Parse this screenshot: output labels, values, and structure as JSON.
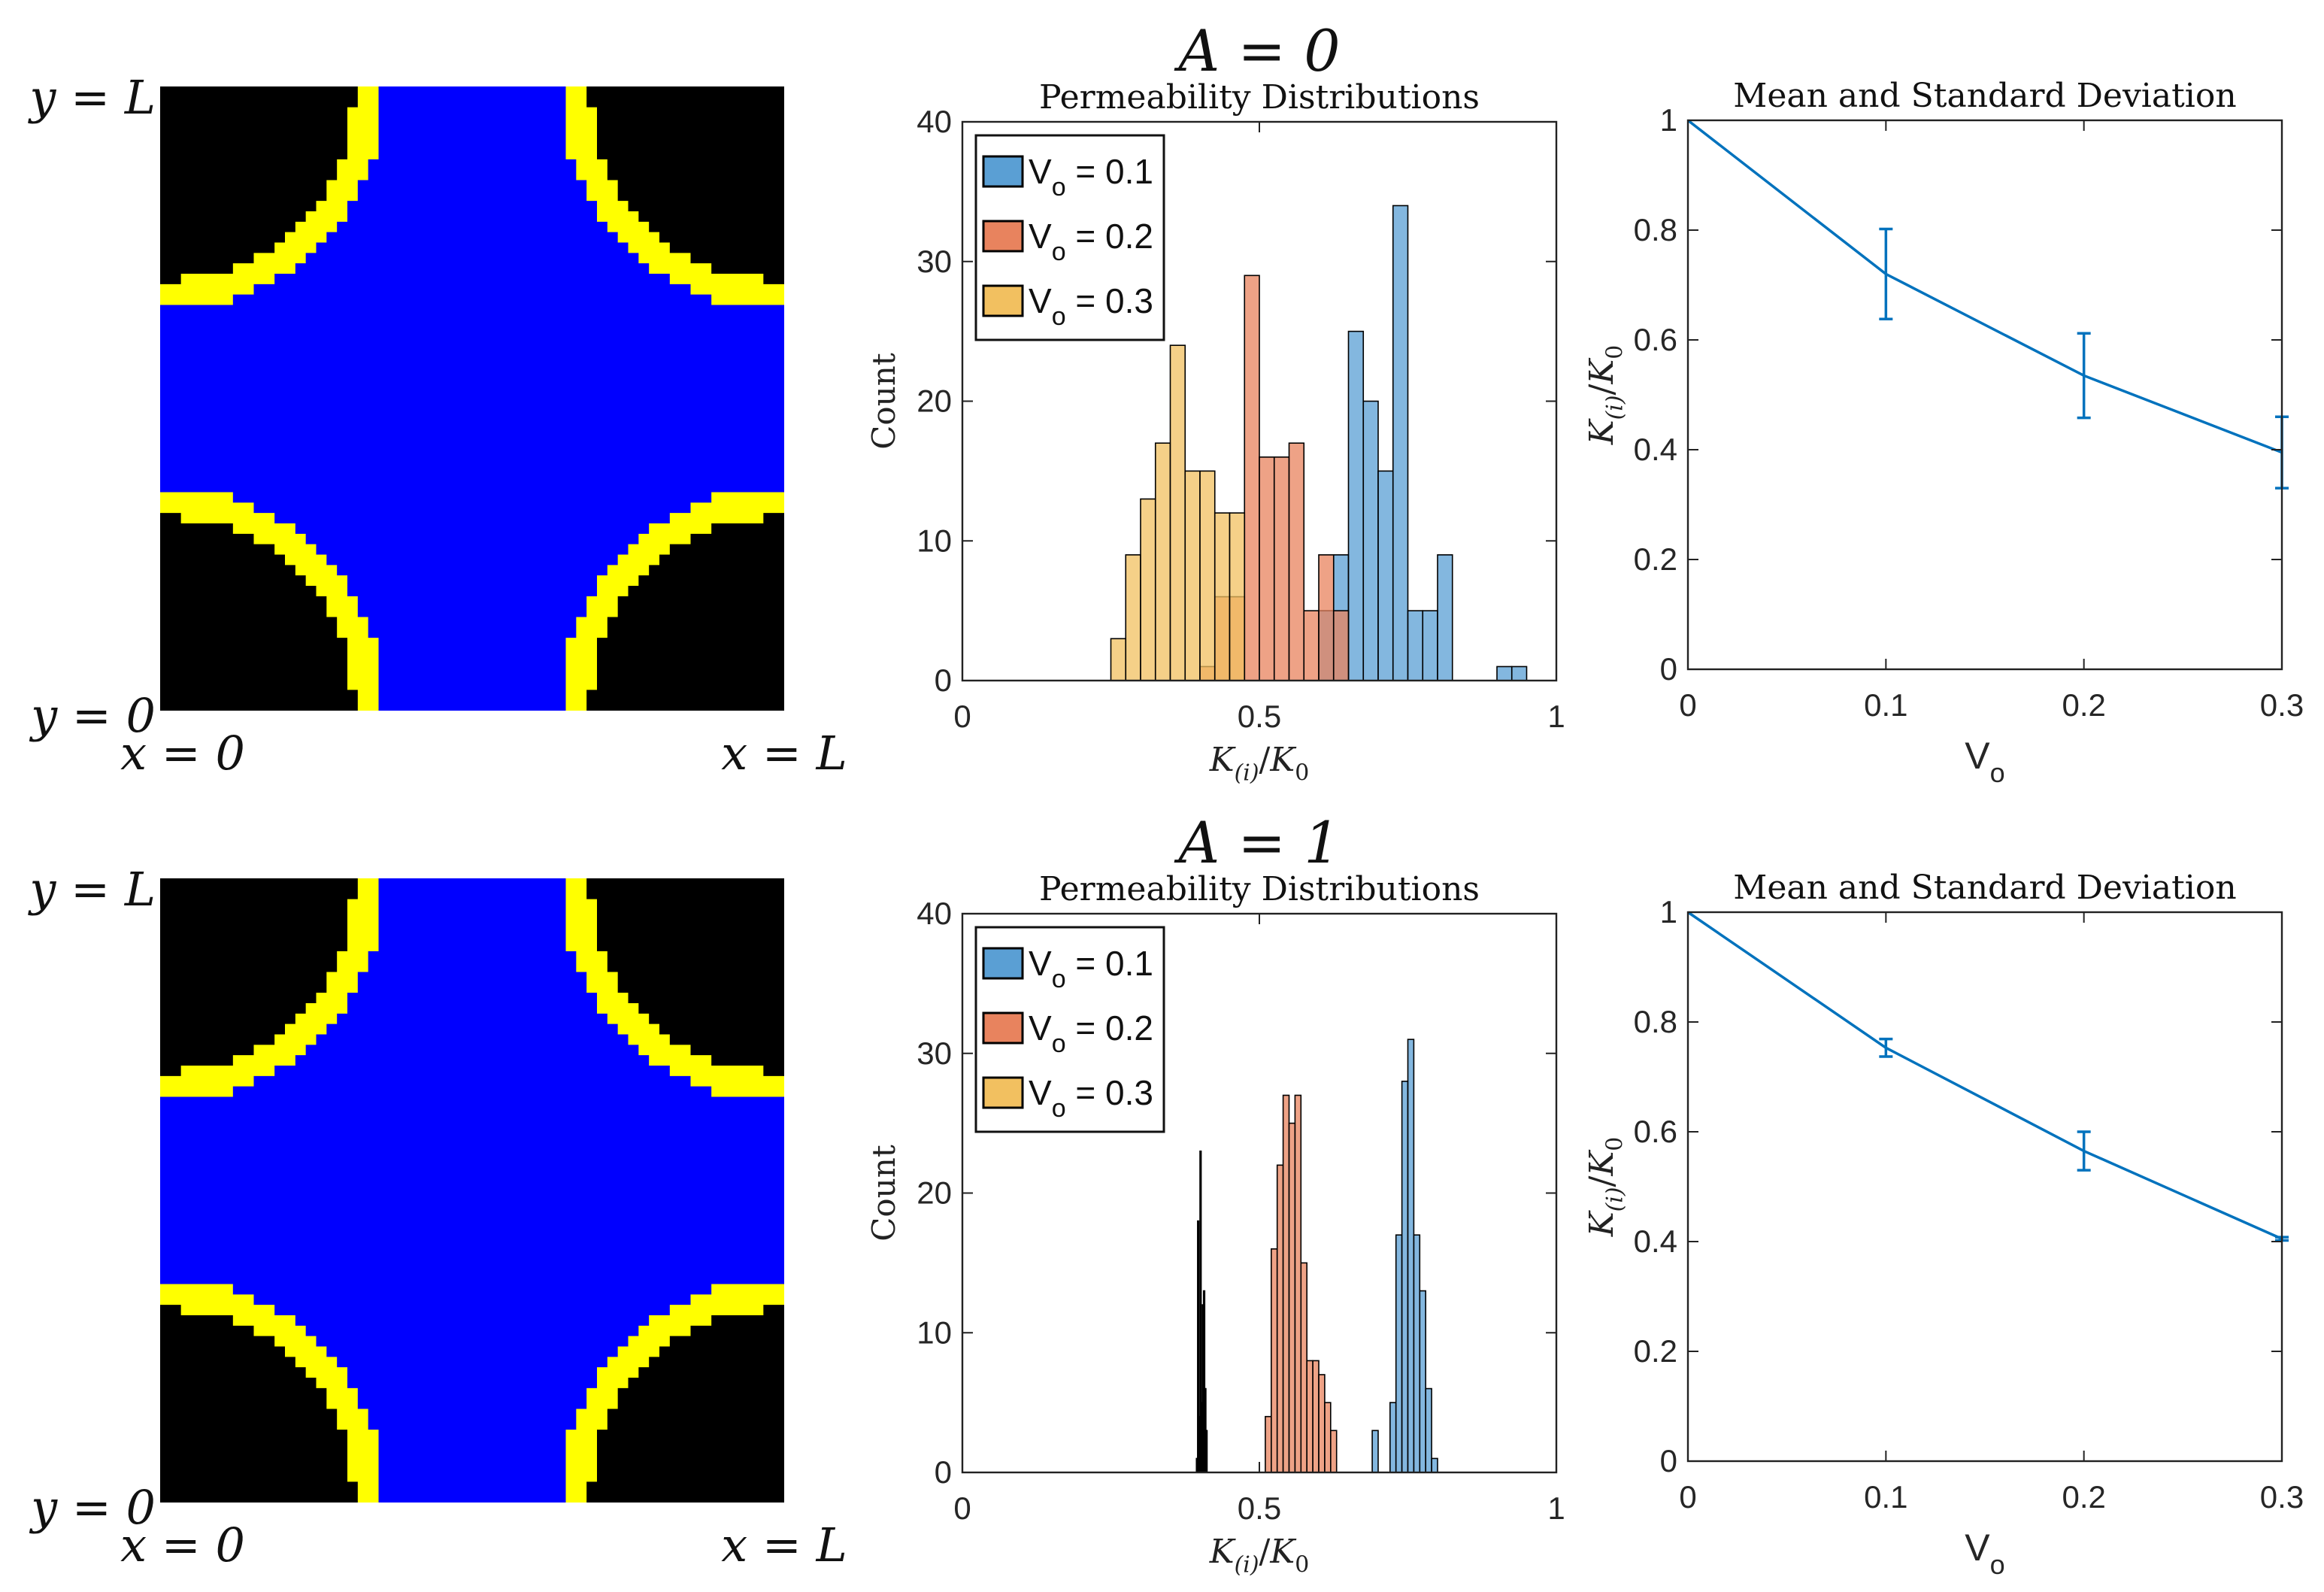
{
  "chart_data": [
    {
      "type": "image",
      "panel": "geometry-A0",
      "labels": {
        "y_top": "y = L",
        "y_bottom": "y = 0",
        "x_left": "x = 0",
        "x_right": "x = L"
      },
      "colors": {
        "solid": "#000000",
        "fluid": "#0000ff",
        "interface": "#ffff00"
      }
    },
    {
      "type": "bar",
      "panel": "hist-A0",
      "row_title": "A = 0",
      "title": "Permeability Distributions",
      "xlabel": "K(i)/K0",
      "ylabel": "Count",
      "xlim": [
        0,
        1
      ],
      "ylim": [
        0,
        40
      ],
      "xticks": [
        "0",
        "0.5",
        "1"
      ],
      "yticks": [
        "0",
        "10",
        "20",
        "30",
        "40"
      ],
      "legend_position": "top-left",
      "series": [
        {
          "name": "Vo = 0.1",
          "sym": "V",
          "sub": "o",
          "value_text": " = 0.1",
          "color": "#5a9fd4",
          "bins": [
            [
              0.6,
              0.625,
              5
            ],
            [
              0.625,
              0.65,
              9
            ],
            [
              0.65,
              0.675,
              25
            ],
            [
              0.675,
              0.7,
              20
            ],
            [
              0.7,
              0.725,
              15
            ],
            [
              0.725,
              0.75,
              34
            ],
            [
              0.75,
              0.775,
              5
            ],
            [
              0.775,
              0.8,
              5
            ],
            [
              0.8,
              0.825,
              9
            ],
            [
              0.9,
              0.925,
              1
            ],
            [
              0.925,
              0.95,
              1
            ]
          ]
        },
        {
          "name": "Vo = 0.2",
          "sym": "V",
          "sub": "o",
          "value_text": " = 0.2",
          "color": "#e8835e",
          "bins": [
            [
              0.4,
              0.425,
              1
            ],
            [
              0.425,
              0.45,
              6
            ],
            [
              0.45,
              0.475,
              6
            ],
            [
              0.475,
              0.5,
              29
            ],
            [
              0.5,
              0.525,
              16
            ],
            [
              0.525,
              0.55,
              16
            ],
            [
              0.55,
              0.575,
              17
            ],
            [
              0.575,
              0.6,
              5
            ],
            [
              0.6,
              0.625,
              9
            ],
            [
              0.625,
              0.65,
              5
            ]
          ]
        },
        {
          "name": "Vo = 0.3",
          "sym": "V",
          "sub": "o",
          "value_text": " = 0.3",
          "color": "#f2c060",
          "bins": [
            [
              0.25,
              0.275,
              3
            ],
            [
              0.275,
              0.3,
              9
            ],
            [
              0.3,
              0.325,
              13
            ],
            [
              0.325,
              0.35,
              17
            ],
            [
              0.35,
              0.375,
              24
            ],
            [
              0.375,
              0.4,
              15
            ],
            [
              0.4,
              0.425,
              15
            ],
            [
              0.425,
              0.45,
              12
            ],
            [
              0.45,
              0.475,
              12
            ]
          ]
        }
      ]
    },
    {
      "type": "line",
      "panel": "errbar-A0",
      "title": "Mean and Standard Deviation",
      "xlabel": "Vo",
      "xlabel_sym": "V",
      "xlabel_sub": "o",
      "ylabel": "K(i)/K0",
      "xlim": [
        0,
        0.3
      ],
      "ylim": [
        0,
        1
      ],
      "xticks": [
        "0",
        "0.1",
        "0.2",
        "0.3"
      ],
      "yticks": [
        "0",
        "0.2",
        "0.4",
        "0.6",
        "0.8",
        "1"
      ],
      "color": "#0072bd",
      "x": [
        0,
        0.1,
        0.2,
        0.3
      ],
      "y": [
        1.0,
        0.72,
        0.535,
        0.395
      ],
      "err": [
        0,
        0.082,
        0.077,
        0.065
      ]
    },
    {
      "type": "image",
      "panel": "geometry-A1",
      "labels": {
        "y_top": "y = L",
        "y_bottom": "y = 0",
        "x_left": "x = 0",
        "x_right": "x = L"
      },
      "colors": {
        "solid": "#000000",
        "fluid": "#0000ff",
        "interface": "#ffff00"
      }
    },
    {
      "type": "bar",
      "panel": "hist-A1",
      "row_title": "A = 1",
      "title": "Permeability Distributions",
      "xlabel": "K(i)/K0",
      "ylabel": "Count",
      "xlim": [
        0,
        1
      ],
      "ylim": [
        0,
        40
      ],
      "xticks": [
        "0",
        "0.5",
        "1"
      ],
      "yticks": [
        "0",
        "10",
        "20",
        "30",
        "40"
      ],
      "legend_position": "top-left",
      "series": [
        {
          "name": "Vo = 0.1",
          "sym": "V",
          "sub": "o",
          "value_text": " = 0.1",
          "color": "#5a9fd4",
          "bins": [
            [
              0.69,
              0.7,
              3
            ],
            [
              0.72,
              0.73,
              5
            ],
            [
              0.73,
              0.74,
              17
            ],
            [
              0.74,
              0.75,
              28
            ],
            [
              0.75,
              0.76,
              31
            ],
            [
              0.76,
              0.77,
              17
            ],
            [
              0.77,
              0.78,
              13
            ],
            [
              0.78,
              0.79,
              6
            ],
            [
              0.79,
              0.8,
              1
            ]
          ]
        },
        {
          "name": "Vo = 0.2",
          "sym": "V",
          "sub": "o",
          "value_text": " = 0.2",
          "color": "#e8835e",
          "bins": [
            [
              0.51,
              0.52,
              4
            ],
            [
              0.52,
              0.53,
              16
            ],
            [
              0.53,
              0.54,
              22
            ],
            [
              0.54,
              0.55,
              27
            ],
            [
              0.55,
              0.56,
              25
            ],
            [
              0.56,
              0.57,
              27
            ],
            [
              0.57,
              0.58,
              15
            ],
            [
              0.58,
              0.59,
              8
            ],
            [
              0.59,
              0.6,
              8
            ],
            [
              0.6,
              0.61,
              7
            ],
            [
              0.61,
              0.62,
              5
            ],
            [
              0.62,
              0.63,
              3
            ]
          ]
        },
        {
          "name": "Vo = 0.3",
          "sym": "V",
          "sub": "o",
          "value_text": " = 0.3",
          "color": "#f2c060",
          "bins": [
            [
              0.394,
              0.396,
              1
            ],
            [
              0.396,
              0.398,
              18
            ],
            [
              0.398,
              0.4,
              4
            ],
            [
              0.4,
              0.402,
              23
            ],
            [
              0.402,
              0.404,
              5
            ],
            [
              0.404,
              0.406,
              12
            ],
            [
              0.406,
              0.408,
              13
            ],
            [
              0.408,
              0.41,
              6
            ],
            [
              0.41,
              0.412,
              3
            ]
          ]
        }
      ]
    },
    {
      "type": "line",
      "panel": "errbar-A1",
      "title": "Mean and Standard Deviation",
      "xlabel": "Vo",
      "xlabel_sym": "V",
      "xlabel_sub": "o",
      "ylabel": "K(i)/K0",
      "xlim": [
        0,
        0.3
      ],
      "ylim": [
        0,
        1
      ],
      "xticks": [
        "0",
        "0.1",
        "0.2",
        "0.3"
      ],
      "yticks": [
        "0",
        "0.2",
        "0.4",
        "0.6",
        "0.8",
        "1"
      ],
      "color": "#0072bd",
      "x": [
        0,
        0.1,
        0.2,
        0.3
      ],
      "y": [
        1.0,
        0.753,
        0.565,
        0.405
      ],
      "err": [
        0,
        0.016,
        0.035,
        0.003
      ]
    }
  ]
}
